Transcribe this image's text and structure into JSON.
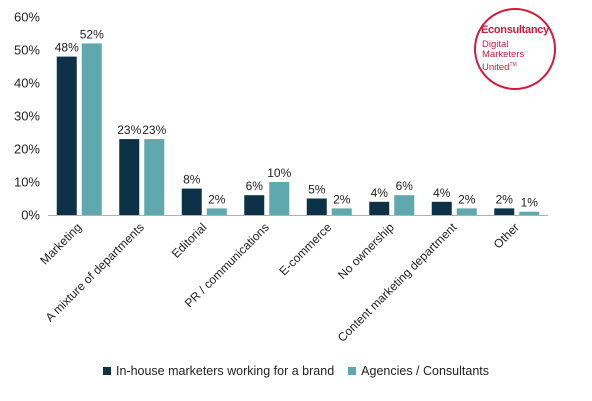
{
  "chart_data": {
    "type": "bar",
    "categories": [
      "Marketing",
      "A mixture of departments",
      "Editorial",
      "PR / communications",
      "E-commerce",
      "No ownership",
      "Content marketing department",
      "Other"
    ],
    "series": [
      {
        "name": "In-house marketers working for a brand",
        "color": "#0d3147",
        "values": [
          48,
          23,
          8,
          6,
          5,
          4,
          4,
          2
        ],
        "labels": [
          "48%",
          "23%",
          "8%",
          "6%",
          "5%",
          "4%",
          "4%",
          "2%"
        ]
      },
      {
        "name": "Agencies / Consultants",
        "color": "#5ea8ae",
        "values": [
          52,
          23,
          2,
          10,
          2,
          6,
          2,
          1
        ],
        "labels": [
          "52%",
          "23%",
          "2%",
          "10%",
          "2%",
          "6%",
          "2%",
          "1%"
        ]
      }
    ],
    "yticks": [
      "0%",
      "10%",
      "20%",
      "30%",
      "40%",
      "50%",
      "60%"
    ],
    "ylim": [
      0,
      60
    ],
    "grid": false,
    "legend_position": "bottom"
  },
  "logo": {
    "brand": "Econsultancy",
    "lines": [
      "Digital",
      "Marketers",
      "United"
    ],
    "trademark": "TM",
    "color": "#d6193a"
  }
}
